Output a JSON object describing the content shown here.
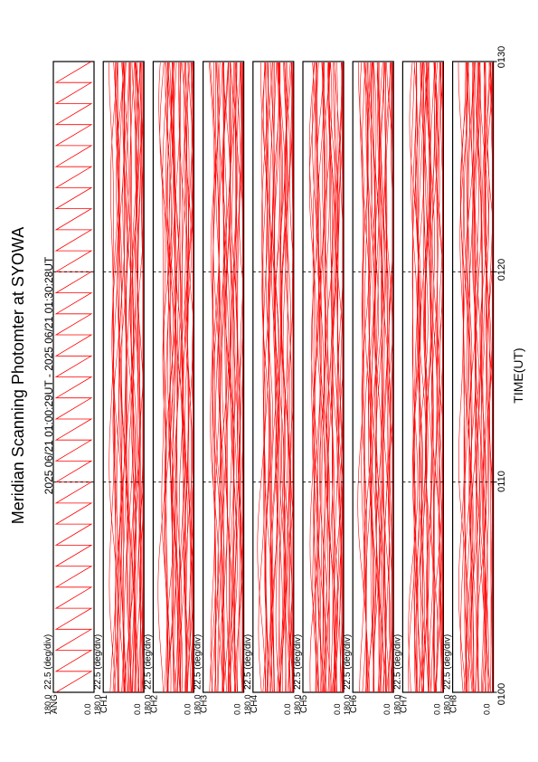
{
  "chart_data": {
    "type": "line",
    "title": "Meridian Scanning Photomter at SYOWA",
    "subtitle": "2025 06/21 01:00:29UT - 2025 06/21 01:30:28UT",
    "xlabel": "TIME(UT)",
    "x_ticks": [
      "0100",
      "0110",
      "0120",
      "0130"
    ],
    "scale_label": "22.5 (deg/div)",
    "y_range_labels": [
      "180.0",
      "0.0"
    ],
    "line_color": "#ff0000",
    "panels": [
      {
        "name": "ANG",
        "label": "ANG",
        "kind": "sawtooth",
        "traces": 1
      },
      {
        "name": "CH1",
        "label": "CH1",
        "kind": "scan",
        "traces": 40
      },
      {
        "name": "CH2",
        "label": "CH2",
        "kind": "scan",
        "traces": 40
      },
      {
        "name": "CH3",
        "label": "CH3",
        "kind": "scan",
        "traces": 40
      },
      {
        "name": "CH4",
        "label": "CH4",
        "kind": "scan",
        "traces": 40
      },
      {
        "name": "CH5",
        "label": "CH5",
        "kind": "scan",
        "traces": 40
      },
      {
        "name": "CH6",
        "label": "CH6",
        "kind": "scan",
        "traces": 40
      },
      {
        "name": "CH7",
        "label": "CH7",
        "kind": "scan",
        "traces": 40
      },
      {
        "name": "CH8",
        "label": "CH8",
        "kind": "scan",
        "traces": 40
      }
    ]
  }
}
